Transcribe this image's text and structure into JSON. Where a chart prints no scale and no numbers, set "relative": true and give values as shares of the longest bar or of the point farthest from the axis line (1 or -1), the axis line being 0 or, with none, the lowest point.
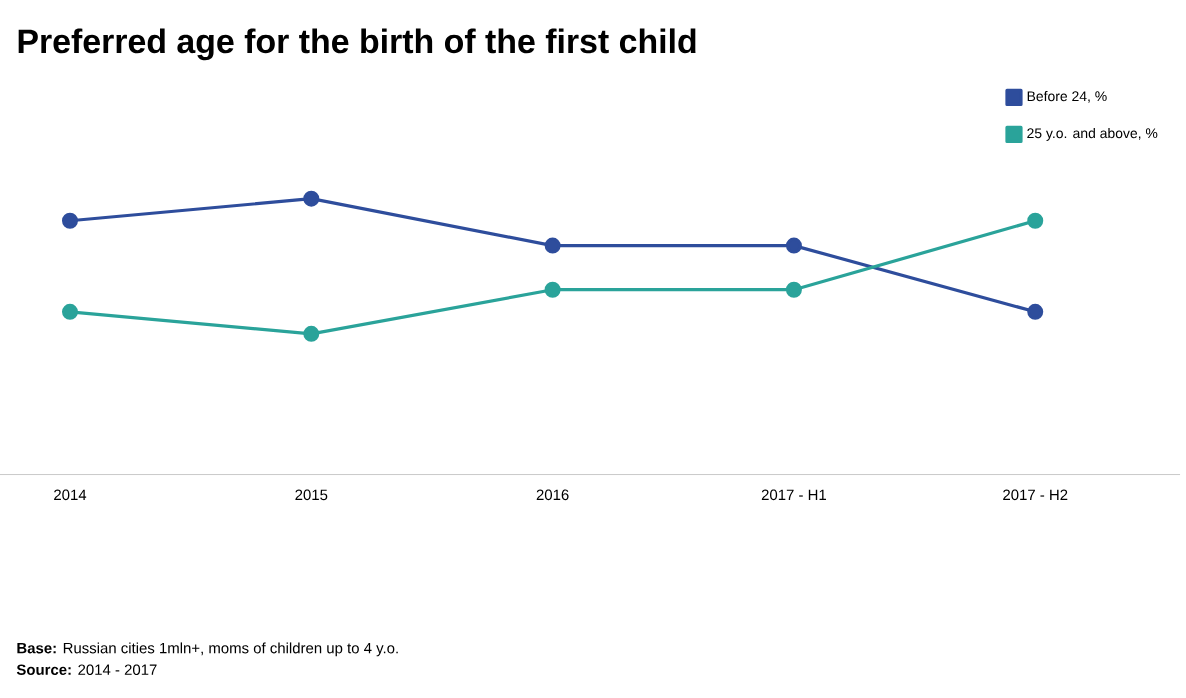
{
  "chart_data": {
    "type": "line",
    "title": "Preferred age for the birth of the first child",
    "categories": [
      "2014",
      "2015",
      "2016",
      "2017 - H1",
      "2017 - H2"
    ],
    "relative": true,
    "legend": "top right",
    "marker": "circle",
    "line_style": "solid",
    "series": [
      {
        "name": "Before 24, %",
        "color": "#2e4d9c",
        "values": [
          0.92,
          1,
          0.83,
          0.83,
          0.59
        ]
      },
      {
        "name": "25 y.o. and above, %",
        "color": "#2aa39a",
        "values": [
          0.59,
          0.51,
          0.67,
          0.67,
          0.92
        ]
      }
    ],
    "annotations": [
      "**Base:** Russian cities 1mln+, moms of children up to 4 y.o.",
      "**Source:** 2014 - 2017"
    ]
  }
}
